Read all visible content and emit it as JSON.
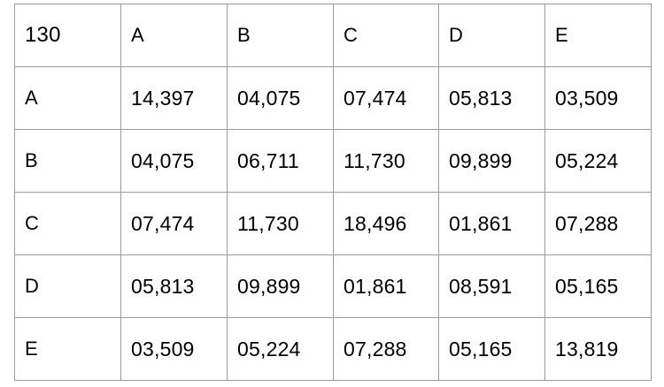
{
  "table": {
    "corner": "130",
    "columns": [
      "A",
      "B",
      "C",
      "D",
      "E"
    ],
    "rows": [
      {
        "label": "A",
        "cells": [
          "14,397",
          "04,075",
          "07,474",
          "05,813",
          "03,509"
        ]
      },
      {
        "label": "B",
        "cells": [
          "04,075",
          "06,711",
          "11,730",
          "09,899",
          "05,224"
        ]
      },
      {
        "label": "C",
        "cells": [
          "07,474",
          "11,730",
          "18,496",
          "01,861",
          "07,288"
        ]
      },
      {
        "label": "D",
        "cells": [
          "05,813",
          "09,899",
          "01,861",
          "08,591",
          "05,165"
        ]
      },
      {
        "label": "E",
        "cells": [
          "03,509",
          "05,224",
          "07,288",
          "05,165",
          "13,819"
        ]
      }
    ]
  }
}
